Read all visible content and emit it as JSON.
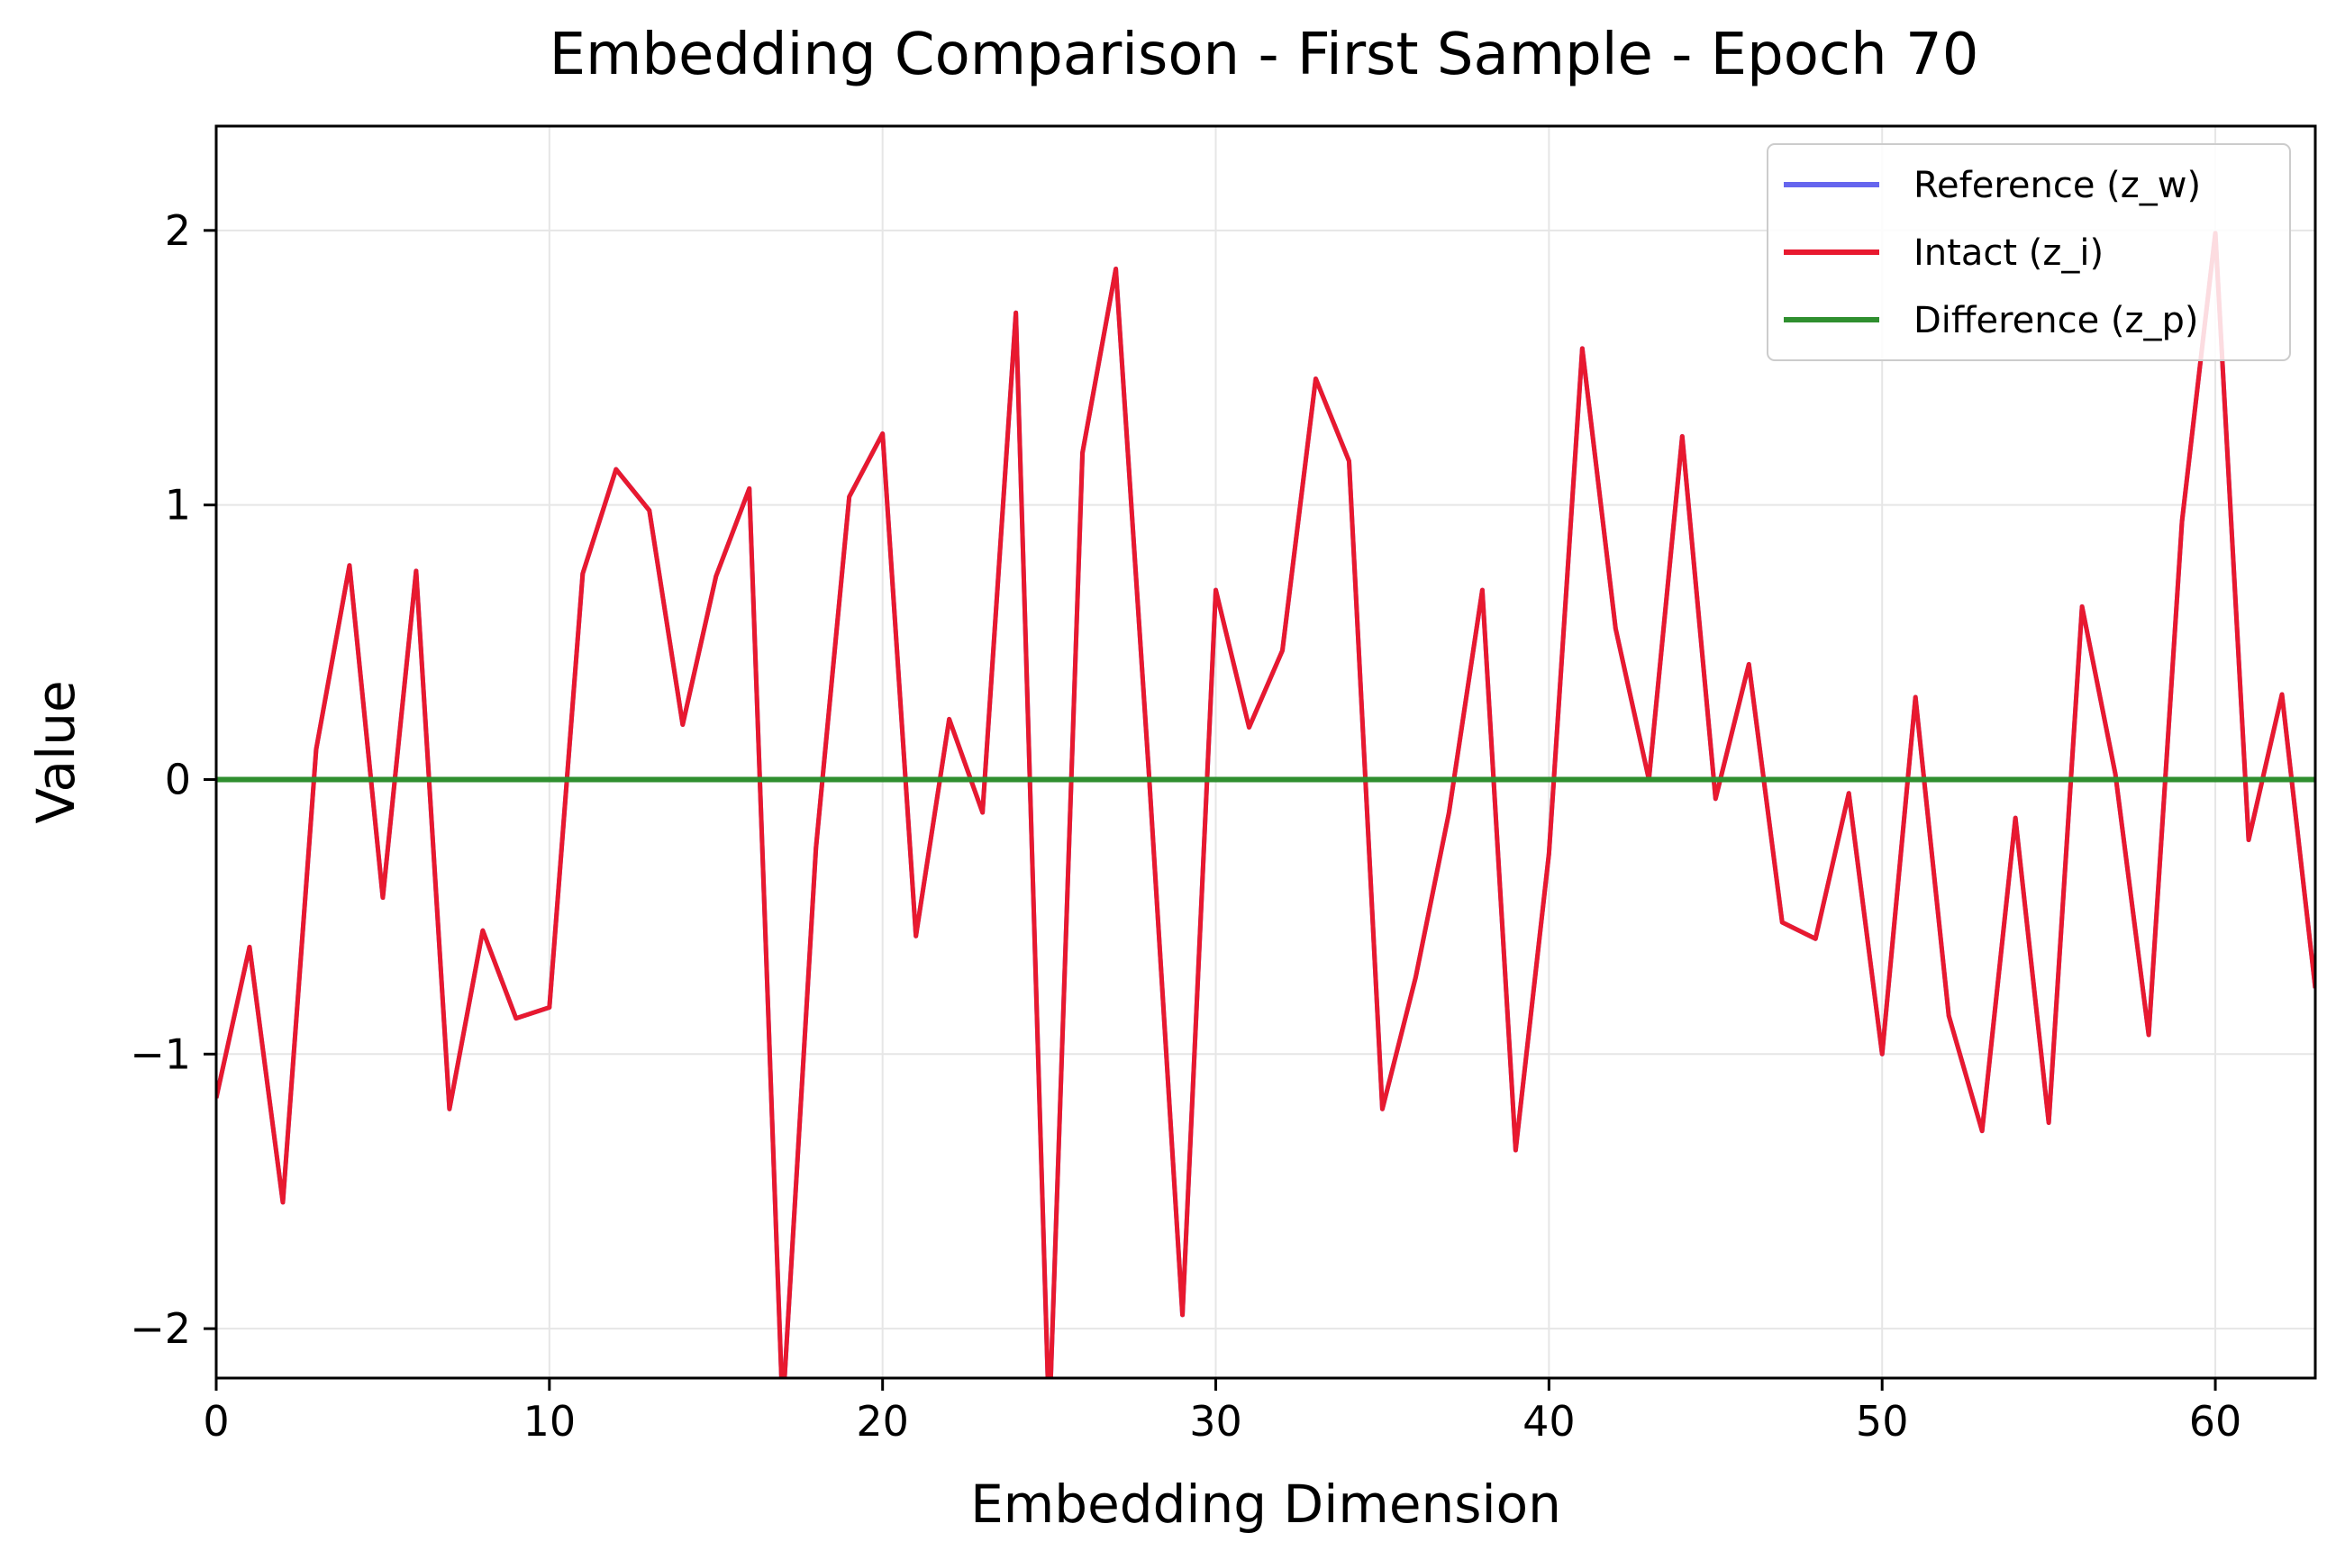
{
  "chart_data": {
    "type": "line",
    "title": "Embedding Comparison - First Sample - Epoch 70",
    "xlabel": "Embedding Dimension",
    "ylabel": "Value",
    "xlim": [
      0,
      63
    ],
    "ylim": [
      -2.18,
      2.38
    ],
    "xticks": [
      0,
      10,
      20,
      30,
      40,
      50,
      60
    ],
    "yticks": [
      -2,
      -1,
      0,
      1,
      2
    ],
    "ytick_labels": [
      "−2",
      "−1",
      "0",
      "1",
      "2"
    ],
    "grid": true,
    "legend_position": "top-right",
    "x": [
      0,
      1,
      2,
      3,
      4,
      5,
      6,
      7,
      8,
      9,
      10,
      11,
      12,
      13,
      14,
      15,
      16,
      17,
      18,
      19,
      20,
      21,
      22,
      23,
      24,
      25,
      26,
      27,
      28,
      29,
      30,
      31,
      32,
      33,
      34,
      35,
      36,
      37,
      38,
      39,
      40,
      41,
      42,
      43,
      44,
      45,
      46,
      47,
      48,
      49,
      50,
      51,
      52,
      53,
      54,
      55,
      56,
      57,
      58,
      59,
      60,
      61,
      62,
      63
    ],
    "series": [
      {
        "name": "Reference (z_w)",
        "color": "#6666ee",
        "values": [
          -1.16,
          -0.61,
          -1.54,
          0.11,
          0.78,
          -0.43,
          0.76,
          -1.2,
          -0.55,
          -0.87,
          -0.83,
          0.75,
          1.13,
          0.98,
          0.2,
          0.74,
          1.06,
          -2.3,
          -0.25,
          1.03,
          1.26,
          -0.57,
          0.22,
          -0.12,
          1.7,
          -2.35,
          1.19,
          1.86,
          0.01,
          -1.95,
          0.69,
          0.19,
          0.47,
          1.46,
          1.16,
          -1.2,
          -0.72,
          -0.12,
          0.69,
          -1.35,
          -0.27,
          1.57,
          0.55,
          0.0,
          1.25,
          -0.07,
          0.42,
          -0.52,
          -0.58,
          -0.05,
          -1.0,
          0.3,
          -0.86,
          -1.28,
          -0.14,
          -1.25,
          0.63,
          0.02,
          -0.93,
          0.94,
          1.99,
          -0.22,
          0.31,
          -0.76
        ]
      },
      {
        "name": "Intact (z_i)",
        "color": "#e8192f",
        "values": [
          -1.16,
          -0.61,
          -1.54,
          0.11,
          0.78,
          -0.43,
          0.76,
          -1.2,
          -0.55,
          -0.87,
          -0.83,
          0.75,
          1.13,
          0.98,
          0.2,
          0.74,
          1.06,
          -2.3,
          -0.25,
          1.03,
          1.26,
          -0.57,
          0.22,
          -0.12,
          1.7,
          -2.35,
          1.19,
          1.86,
          0.01,
          -1.95,
          0.69,
          0.19,
          0.47,
          1.46,
          1.16,
          -1.2,
          -0.72,
          -0.12,
          0.69,
          -1.35,
          -0.27,
          1.57,
          0.55,
          0.0,
          1.25,
          -0.07,
          0.42,
          -0.52,
          -0.58,
          -0.05,
          -1.0,
          0.3,
          -0.86,
          -1.28,
          -0.14,
          -1.25,
          0.63,
          0.02,
          -0.93,
          0.94,
          1.99,
          -0.22,
          0.31,
          -0.76
        ]
      },
      {
        "name": "Difference (z_p)",
        "color": "#2f8f2f",
        "values": [
          0,
          0,
          0,
          0,
          0,
          0,
          0,
          0,
          0,
          0,
          0,
          0,
          0,
          0,
          0,
          0,
          0,
          0,
          0,
          0,
          0,
          0,
          0,
          0,
          0,
          0,
          0,
          0,
          0,
          0,
          0,
          0,
          0,
          0,
          0,
          0,
          0,
          0,
          0,
          0,
          0,
          0,
          0,
          0,
          0,
          0,
          0,
          0,
          0,
          0,
          0,
          0,
          0,
          0,
          0,
          0,
          0,
          0,
          0,
          0,
          0,
          0,
          0,
          0
        ]
      }
    ]
  }
}
